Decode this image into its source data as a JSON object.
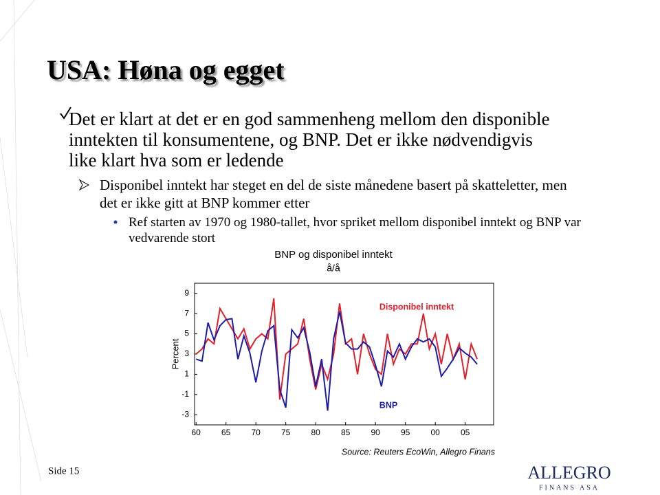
{
  "title": "USA: Høna og egget",
  "bullets": [
    {
      "text": "Det er klart at det er en god sammenheng mellom den disponible inntekten til konsumentene, og BNP. Det er ikke nødvendigvis like klart hva som er ledende"
    },
    {
      "text": "Disponibel inntekt har steget en del de siste månedene basert på skatteletter, men det er ikke gitt at BNP kommer etter"
    },
    {
      "text": "Ref starten av 1970 og 1980-tallet, hvor spriket mellom disponibel inntekt og BNP var vedvarende stort"
    }
  ],
  "chart_data": {
    "type": "line",
    "title": "BNP og disponibel inntekt",
    "subtitle": "å/å",
    "y_label": "Percent",
    "source": "Source: Reuters EcoWin, Allegro Finans",
    "x": [
      1960,
      1961,
      1962,
      1963,
      1964,
      1965,
      1966,
      1967,
      1968,
      1969,
      1970,
      1971,
      1972,
      1973,
      1974,
      1975,
      1976,
      1977,
      1978,
      1979,
      1980,
      1981,
      1982,
      1983,
      1984,
      1985,
      1986,
      1987,
      1988,
      1989,
      1990,
      1991,
      1992,
      1993,
      1994,
      1995,
      1996,
      1997,
      1998,
      1999,
      2000,
      2001,
      2002,
      2003,
      2004,
      2005,
      2006,
      2007
    ],
    "series": [
      {
        "name": "Disponibel inntekt",
        "color": "#e0202a",
        "values": [
          3,
          3.5,
          4.5,
          4,
          7.5,
          6.5,
          5.5,
          4.5,
          5.5,
          3.5,
          4.5,
          5,
          4.5,
          8.5,
          -1.5,
          3,
          3.5,
          4,
          6.5,
          2.5,
          -0.5,
          2,
          0.5,
          3,
          8,
          4,
          4.5,
          1,
          5,
          3,
          1.5,
          1,
          5,
          2,
          3.5,
          3,
          4,
          4,
          7,
          3.5,
          5,
          2,
          5,
          2.5,
          4,
          0.5,
          4,
          2.5
        ]
      },
      {
        "name": "BNP",
        "color": "#1c1ca8",
        "values": [
          2.5,
          2.3,
          6.1,
          4.4,
          5.8,
          6.4,
          6.5,
          2.5,
          4.8,
          3.1,
          0.2,
          3.3,
          5.3,
          5.8,
          -0.5,
          -2.3,
          5.4,
          4.6,
          5.6,
          3.2,
          -0.2,
          2.5,
          -2.6,
          4.5,
          7.2,
          4.1,
          3.5,
          3.5,
          4.2,
          3.7,
          1.9,
          -0.2,
          3.3,
          2.7,
          4,
          2.5,
          3.7,
          4.5,
          4.2,
          4.5,
          3.7,
          0.8,
          1.6,
          2.5,
          3.6,
          3.1,
          2.7,
          2
        ]
      }
    ],
    "xlim": [
      1959.75,
      2009.75
    ],
    "ylim": [
      -4,
      10
    ],
    "xticks": [
      {
        "value": 1960,
        "label": "60"
      },
      {
        "value": 1965,
        "label": "65"
      },
      {
        "value": 1970,
        "label": "70"
      },
      {
        "value": 1975,
        "label": "75"
      },
      {
        "value": 1980,
        "label": "80"
      },
      {
        "value": 1985,
        "label": "85"
      },
      {
        "value": 1990,
        "label": "90"
      },
      {
        "value": 1995,
        "label": "95"
      },
      {
        "value": 2000,
        "label": "00"
      },
      {
        "value": 2005,
        "label": "05"
      }
    ],
    "yticks": [
      9,
      7,
      5,
      3,
      1,
      -1,
      -3
    ]
  },
  "footer": {
    "page": "Side 15",
    "logo_name": "ALLEGRO",
    "logo_sub": "FINANS ASA"
  }
}
